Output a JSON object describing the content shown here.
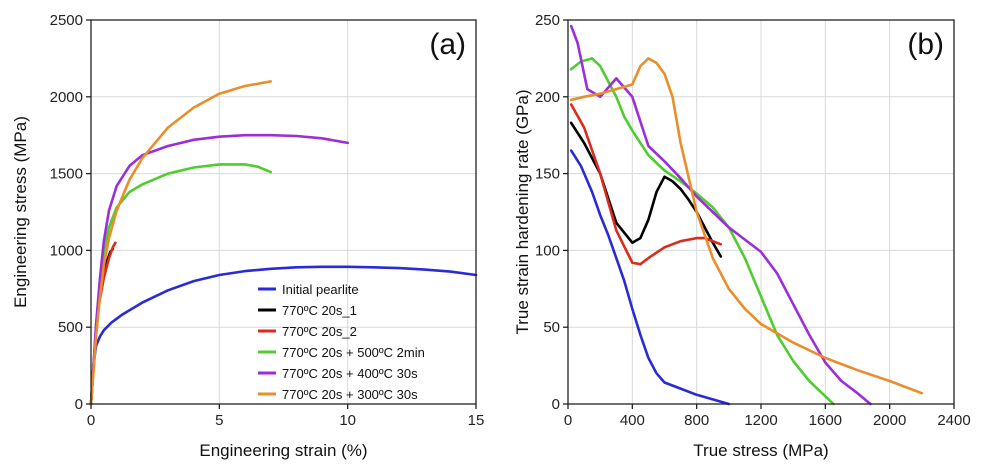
{
  "chart_data": [
    {
      "type": "line",
      "panel_label": "(a)",
      "xlabel": "Engineering strain (%)",
      "ylabel": "Engineering stress (MPa)",
      "xlim": [
        0,
        15
      ],
      "ylim": [
        0,
        2500
      ],
      "xticks": [
        0,
        5,
        10,
        15
      ],
      "yticks": [
        0,
        500,
        1000,
        1500,
        2000,
        2500
      ],
      "grid": true,
      "legend_position": "bottom-right",
      "series": [
        {
          "name": "Initial pearlite",
          "color": "#2a2ad8",
          "x": [
            0,
            0.05,
            0.1,
            0.2,
            0.35,
            0.5,
            0.8,
            1.2,
            2,
            3,
            4,
            5,
            6,
            7,
            8,
            9,
            10,
            11,
            12,
            13,
            14,
            15
          ],
          "y": [
            0,
            150,
            260,
            380,
            440,
            480,
            530,
            580,
            660,
            740,
            800,
            840,
            865,
            880,
            890,
            893,
            893,
            890,
            885,
            875,
            862,
            840
          ]
        },
        {
          "name": "770ºC 20s_1",
          "color": "#000000",
          "x": [
            0,
            0.1,
            0.2,
            0.3,
            0.45,
            0.6,
            0.75,
            0.85
          ],
          "y": [
            0,
            250,
            480,
            650,
            800,
            920,
            990,
            1010
          ]
        },
        {
          "name": "770ºC 20s_2",
          "color": "#d92b1e",
          "x": [
            0,
            0.1,
            0.2,
            0.3,
            0.5,
            0.7,
            0.85,
            0.95
          ],
          "y": [
            0,
            240,
            470,
            640,
            820,
            950,
            1020,
            1050
          ]
        },
        {
          "name": "770ºC 20s + 500ºC 2min",
          "color": "#4fcc2e",
          "x": [
            0,
            0.1,
            0.2,
            0.35,
            0.5,
            0.7,
            1,
            1.5,
            2,
            3,
            4,
            5,
            6,
            6.5,
            7
          ],
          "y": [
            0,
            250,
            500,
            780,
            990,
            1150,
            1280,
            1380,
            1430,
            1500,
            1540,
            1560,
            1560,
            1545,
            1510
          ]
        },
        {
          "name": "770ºC 20s + 400ºC 30s",
          "color": "#9b2ed8",
          "x": [
            0,
            0.1,
            0.2,
            0.35,
            0.5,
            0.7,
            1,
            1.5,
            2,
            3,
            4,
            5,
            6,
            7,
            8,
            9,
            10
          ],
          "y": [
            0,
            260,
            520,
            820,
            1060,
            1260,
            1420,
            1550,
            1620,
            1680,
            1720,
            1740,
            1750,
            1750,
            1745,
            1730,
            1700
          ]
        },
        {
          "name": "770ºC 20s + 300ºC 30s",
          "color": "#ea8d2a",
          "x": [
            0,
            0.1,
            0.2,
            0.35,
            0.5,
            0.7,
            1,
            1.5,
            2,
            3,
            4,
            5,
            6,
            7
          ],
          "y": [
            0,
            220,
            440,
            700,
            900,
            1080,
            1260,
            1460,
            1600,
            1800,
            1930,
            2020,
            2070,
            2100
          ]
        }
      ]
    },
    {
      "type": "line",
      "panel_label": "(b)",
      "xlabel": "True stress (MPa)",
      "ylabel": "True strain hardening rate (GPa)",
      "xlim": [
        0,
        2400
      ],
      "ylim": [
        0,
        250
      ],
      "xticks": [
        0,
        400,
        800,
        1200,
        1600,
        2000,
        2400
      ],
      "yticks": [
        0,
        50,
        100,
        150,
        200,
        250
      ],
      "grid": true,
      "series": [
        {
          "name": "Initial pearlite",
          "color": "#2a2ad8",
          "x": [
            20,
            80,
            150,
            200,
            250,
            300,
            350,
            400,
            450,
            500,
            550,
            600,
            700,
            800,
            900,
            1000
          ],
          "y": [
            165,
            155,
            138,
            123,
            110,
            95,
            80,
            62,
            45,
            30,
            20,
            14,
            10,
            6,
            3,
            0
          ]
        },
        {
          "name": "770ºC 20s_1",
          "color": "#000000",
          "x": [
            20,
            100,
            200,
            300,
            400,
            450,
            500,
            550,
            600,
            650,
            700,
            750,
            800,
            850,
            900,
            950
          ],
          "y": [
            183,
            170,
            150,
            118,
            105,
            108,
            120,
            138,
            148,
            145,
            140,
            133,
            125,
            115,
            105,
            96
          ]
        },
        {
          "name": "770ºC 20s_2",
          "color": "#d92b1e",
          "x": [
            20,
            100,
            200,
            300,
            400,
            450,
            500,
            600,
            700,
            800,
            850,
            900,
            950
          ],
          "y": [
            195,
            180,
            150,
            113,
            92,
            91,
            95,
            102,
            106,
            108,
            108,
            106,
            104
          ]
        },
        {
          "name": "770ºC 20s + 500ºC 2min",
          "color": "#4fcc2e",
          "x": [
            20,
            80,
            150,
            200,
            250,
            300,
            350,
            400,
            500,
            600,
            700,
            800,
            900,
            1000,
            1100,
            1200,
            1300,
            1400,
            1500,
            1600,
            1650
          ],
          "y": [
            218,
            223,
            225,
            220,
            210,
            200,
            187,
            178,
            162,
            152,
            145,
            137,
            128,
            115,
            95,
            70,
            45,
            28,
            15,
            5,
            0
          ]
        },
        {
          "name": "770ºC 20s + 400ºC 30s",
          "color": "#9b2ed8",
          "x": [
            20,
            60,
            120,
            200,
            300,
            400,
            500,
            600,
            700,
            800,
            900,
            1000,
            1100,
            1200,
            1300,
            1400,
            1500,
            1600,
            1700,
            1800,
            1880
          ],
          "y": [
            246,
            235,
            205,
            200,
            212,
            200,
            168,
            158,
            147,
            135,
            125,
            115,
            107,
            99,
            85,
            65,
            45,
            27,
            15,
            7,
            0
          ]
        },
        {
          "name": "770ºC 20s + 300ºC 30s",
          "color": "#ea8d2a",
          "x": [
            20,
            100,
            200,
            300,
            400,
            450,
            500,
            550,
            600,
            650,
            700,
            800,
            900,
            1000,
            1100,
            1200,
            1400,
            1600,
            1800,
            2000,
            2200
          ],
          "y": [
            198,
            200,
            202,
            205,
            208,
            220,
            225,
            222,
            215,
            200,
            170,
            125,
            95,
            75,
            62,
            52,
            40,
            30,
            22,
            15,
            7
          ]
        }
      ]
    }
  ]
}
